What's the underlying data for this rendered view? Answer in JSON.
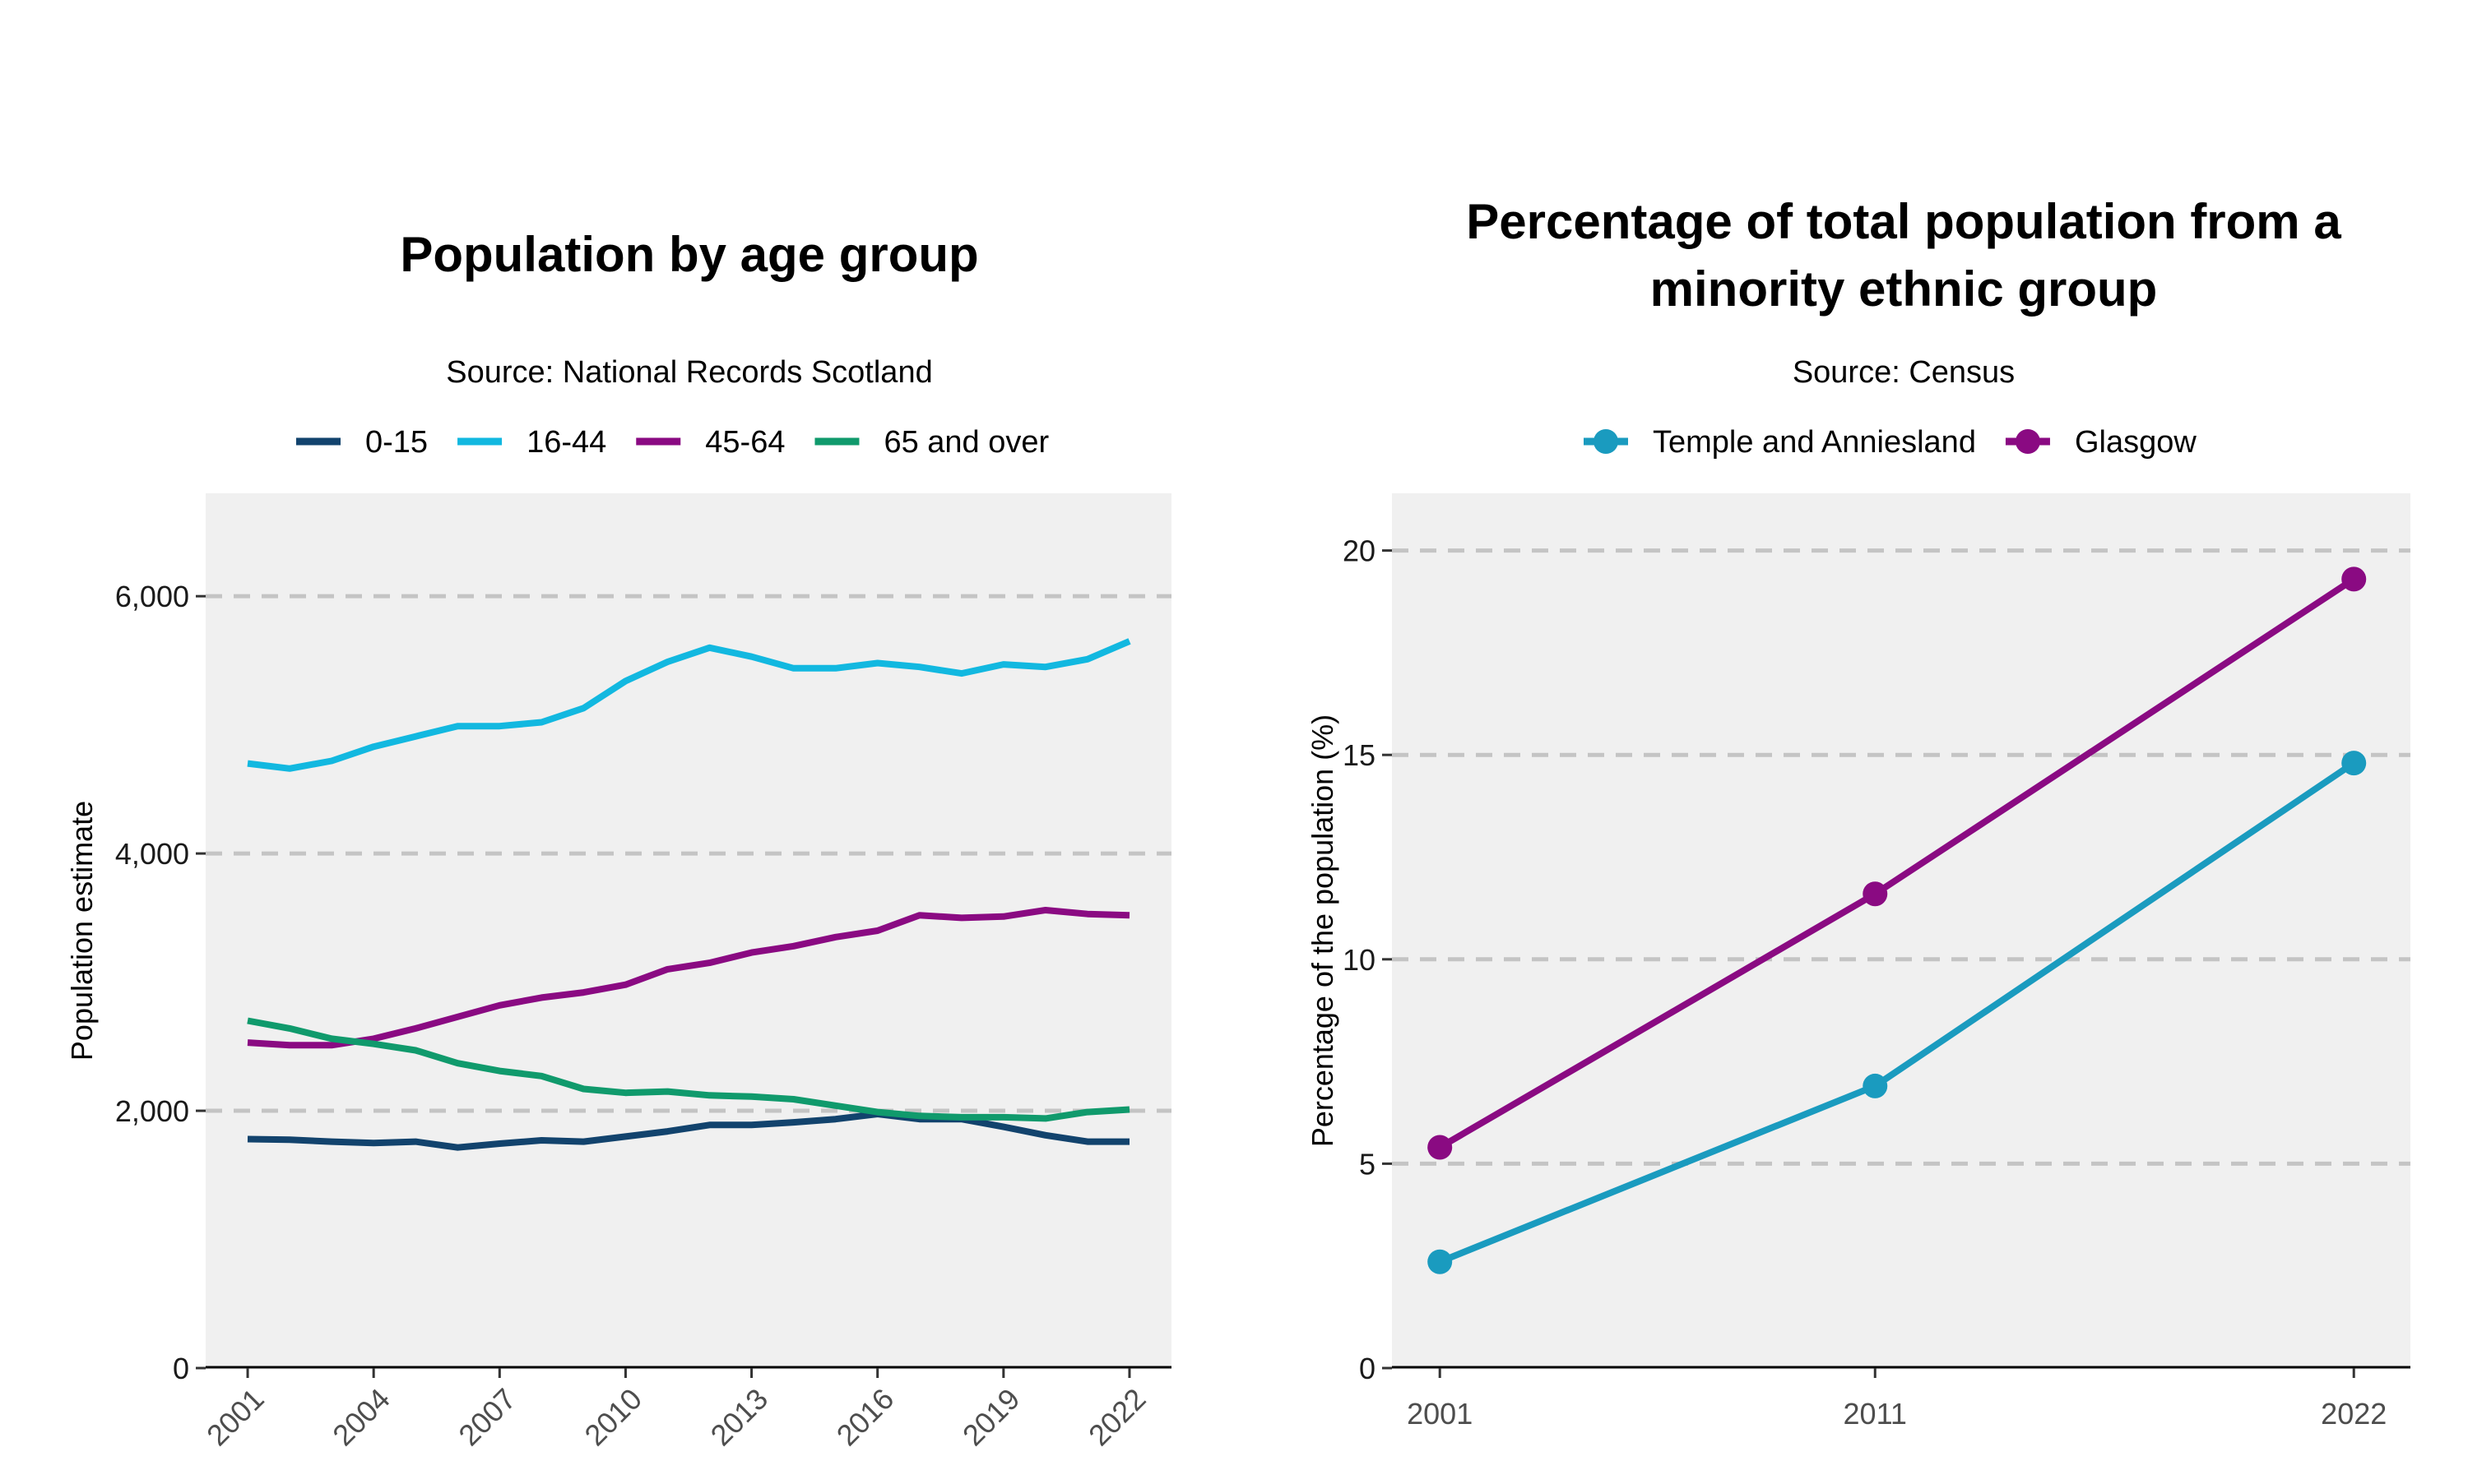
{
  "chart_data": [
    {
      "type": "line",
      "title": "Population by age group",
      "subtitle": "Source: National Records Scotland",
      "xlabel": "",
      "ylabel": "Population estimate",
      "xlim": [
        2000,
        2023
      ],
      "ylim": [
        0,
        6800
      ],
      "yticks": [
        0,
        2000,
        4000,
        6000
      ],
      "ytick_labels": [
        "0",
        "2,000",
        "4,000",
        "6,000"
      ],
      "xticks": [
        2001,
        2004,
        2007,
        2010,
        2013,
        2016,
        2019,
        2022
      ],
      "xtick_labels": [
        "2001",
        "2004",
        "2007",
        "2010",
        "2013",
        "2016",
        "2019",
        "2022"
      ],
      "grid": "horizontal dashed",
      "legend": "top",
      "x": [
        2001,
        2002,
        2003,
        2004,
        2005,
        2006,
        2007,
        2008,
        2009,
        2010,
        2011,
        2012,
        2013,
        2014,
        2015,
        2016,
        2017,
        2018,
        2019,
        2020,
        2021,
        2022
      ],
      "series": [
        {
          "name": "0-15",
          "color": "#12436d",
          "values": [
            1780,
            1775,
            1760,
            1750,
            1760,
            1715,
            1745,
            1770,
            1760,
            1800,
            1840,
            1890,
            1890,
            1910,
            1935,
            1975,
            1935,
            1935,
            1875,
            1810,
            1760,
            1760
          ]
        },
        {
          "name": "16-44",
          "color": "#12b8e0",
          "values": [
            4700,
            4660,
            4720,
            4830,
            4910,
            4990,
            4990,
            5020,
            5130,
            5340,
            5490,
            5600,
            5530,
            5440,
            5440,
            5480,
            5450,
            5400,
            5470,
            5450,
            5510,
            5650
          ]
        },
        {
          "name": "45-64",
          "color": "#8a0a82",
          "values": [
            2530,
            2510,
            2510,
            2560,
            2640,
            2730,
            2820,
            2880,
            2920,
            2980,
            3100,
            3150,
            3230,
            3280,
            3350,
            3400,
            3520,
            3500,
            3510,
            3560,
            3530,
            3520
          ]
        },
        {
          "name": "65 and over",
          "color": "#109a6c",
          "values": [
            2700,
            2640,
            2560,
            2520,
            2470,
            2370,
            2310,
            2270,
            2170,
            2140,
            2150,
            2120,
            2110,
            2090,
            2040,
            1990,
            1960,
            1950,
            1950,
            1940,
            1990,
            2010
          ]
        }
      ]
    },
    {
      "type": "line",
      "title": "Percentage of total population from a minority ethnic group",
      "title_lines": [
        "Percentage of total population from a",
        "minority ethnic group"
      ],
      "subtitle": "Source: Census",
      "xlabel": "",
      "ylabel": "Percentage of the population (%)",
      "xlim": [
        1999.9,
        2023.3
      ],
      "ylim": [
        0,
        21.4
      ],
      "yticks": [
        0,
        5,
        10,
        15,
        20
      ],
      "ytick_labels": [
        "0",
        "5",
        "10",
        "15",
        "20"
      ],
      "xticks": [
        2001,
        2011,
        2022
      ],
      "xtick_labels": [
        "2001",
        "2011",
        "2022"
      ],
      "grid": "horizontal dashed",
      "legend": "top",
      "x": [
        2001,
        2011,
        2022
      ],
      "series": [
        {
          "name": "Temple and Anniesland",
          "color": "#1a9bbf",
          "values": [
            2.6,
            6.9,
            14.8
          ]
        },
        {
          "name": "Glasgow",
          "color": "#8a0a82",
          "values": [
            5.4,
            11.6,
            19.3
          ]
        }
      ]
    }
  ]
}
